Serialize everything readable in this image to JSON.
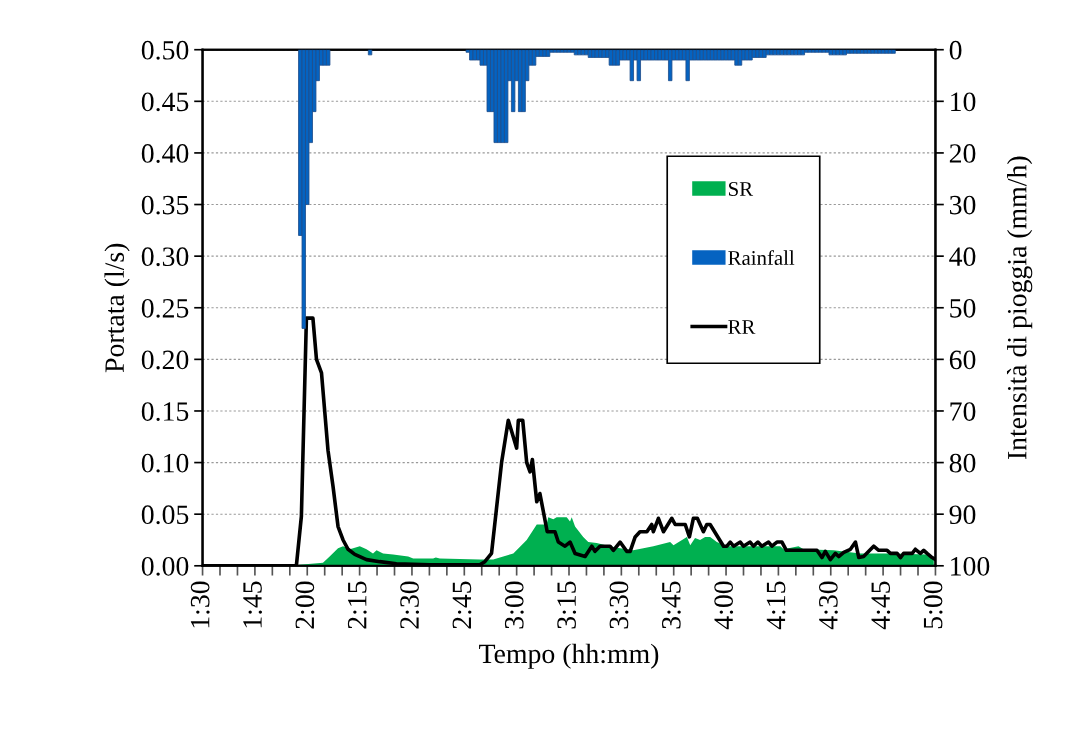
{
  "chart_data": {
    "type": "area",
    "xlabel": "Tempo (hh:mm)",
    "ylabel": "Portata (l/s)",
    "y2label": "Intensità di pioggia (mm/h)",
    "xlim": [
      1.5,
      5.0
    ],
    "xticks": [
      {
        "value": 1.5,
        "label": "1:30"
      },
      {
        "value": 1.5833,
        "label": null
      },
      {
        "value": 1.6667,
        "label": null
      },
      {
        "value": 1.75,
        "label": "1:45"
      },
      {
        "value": 1.8333,
        "label": null
      },
      {
        "value": 1.9167,
        "label": null
      },
      {
        "value": 2.0,
        "label": "2:00"
      },
      {
        "value": 2.0833,
        "label": null
      },
      {
        "value": 2.1667,
        "label": null
      },
      {
        "value": 2.25,
        "label": "2:15"
      },
      {
        "value": 2.3333,
        "label": null
      },
      {
        "value": 2.4167,
        "label": null
      },
      {
        "value": 2.5,
        "label": "2:30"
      },
      {
        "value": 2.5833,
        "label": null
      },
      {
        "value": 2.6667,
        "label": null
      },
      {
        "value": 2.75,
        "label": "2:45"
      },
      {
        "value": 2.8333,
        "label": null
      },
      {
        "value": 2.9167,
        "label": null
      },
      {
        "value": 3.0,
        "label": "3:00"
      },
      {
        "value": 3.0833,
        "label": null
      },
      {
        "value": 3.1667,
        "label": null
      },
      {
        "value": 3.25,
        "label": "3:15"
      },
      {
        "value": 3.3333,
        "label": null
      },
      {
        "value": 3.4167,
        "label": null
      },
      {
        "value": 3.5,
        "label": "3:30"
      },
      {
        "value": 3.5833,
        "label": null
      },
      {
        "value": 3.6667,
        "label": null
      },
      {
        "value": 3.75,
        "label": "3:45"
      },
      {
        "value": 3.8333,
        "label": null
      },
      {
        "value": 3.9167,
        "label": null
      },
      {
        "value": 4.0,
        "label": "4:00"
      },
      {
        "value": 4.0833,
        "label": null
      },
      {
        "value": 4.1667,
        "label": null
      },
      {
        "value": 4.25,
        "label": "4:15"
      },
      {
        "value": 4.3333,
        "label": null
      },
      {
        "value": 4.4167,
        "label": null
      },
      {
        "value": 4.5,
        "label": "4:30"
      },
      {
        "value": 4.5833,
        "label": null
      },
      {
        "value": 4.6667,
        "label": null
      },
      {
        "value": 4.75,
        "label": "4:45"
      },
      {
        "value": 4.8333,
        "label": null
      },
      {
        "value": 4.9167,
        "label": null
      },
      {
        "value": 5.0,
        "label": "5:00"
      }
    ],
    "ylim": [
      0,
      0.5
    ],
    "yticks": [
      {
        "value": 0,
        "label": "0.00"
      },
      {
        "value": 0.05,
        "label": "0.05"
      },
      {
        "value": 0.1,
        "label": "0.10"
      },
      {
        "value": 0.15,
        "label": "0.15"
      },
      {
        "value": 0.2,
        "label": "0.20"
      },
      {
        "value": 0.25,
        "label": "0.25"
      },
      {
        "value": 0.3,
        "label": "0.30"
      },
      {
        "value": 0.35,
        "label": "0.35"
      },
      {
        "value": 0.4,
        "label": "0.40"
      },
      {
        "value": 0.45,
        "label": "0.45"
      },
      {
        "value": 0.5,
        "label": "0.50"
      }
    ],
    "y2lim": [
      100,
      0
    ],
    "y2ticks": [
      0,
      10,
      20,
      30,
      40,
      50,
      60,
      70,
      80,
      90,
      100
    ],
    "grid": "y",
    "legend": "right",
    "series": [
      {
        "name": "SR",
        "color": "#00b050",
        "x": [
          1.5,
          1.948,
          1.964,
          2.075,
          2.107,
          2.147,
          2.171,
          2.203,
          2.251,
          2.283,
          2.314,
          2.331,
          2.362,
          2.41,
          2.482,
          2.506,
          2.601,
          2.614,
          2.633,
          2.824,
          2.888,
          2.984,
          3.048,
          3.096,
          3.143,
          3.151,
          3.175,
          3.191,
          3.239,
          3.255,
          3.263,
          3.279,
          3.318,
          3.342,
          3.382,
          3.446,
          3.494,
          3.557,
          3.653,
          3.733,
          3.749,
          3.813,
          3.829,
          3.852,
          3.876,
          3.9,
          3.924,
          3.956,
          4.004,
          4.259,
          4.275,
          4.346,
          4.37,
          4.514,
          4.641,
          4.801,
          4.96,
          4.992
        ],
        "values": [
          0,
          0,
          0.001,
          0.003,
          0.009,
          0.017,
          0.019,
          0.016,
          0.019,
          0.016,
          0.012,
          0.015,
          0.012,
          0.011,
          0.009,
          0.007,
          0.007,
          0.008,
          0.007,
          0.006,
          0.006,
          0.012,
          0.025,
          0.04,
          0.04,
          0.047,
          0.045,
          0.047,
          0.047,
          0.043,
          0.047,
          0.038,
          0.028,
          0.023,
          0.022,
          0.019,
          0.017,
          0.015,
          0.019,
          0.023,
          0.02,
          0.028,
          0.02,
          0.027,
          0.025,
          0.028,
          0.028,
          0.023,
          0.019,
          0.019,
          0.016,
          0.019,
          0.016,
          0.015,
          0.012,
          0.012,
          0.011,
          0.006
        ]
      },
      {
        "name": "Rainfall",
        "type": "bar",
        "axis": "y2",
        "color": "#0563c1",
        "x": [
          1.9667,
          1.9833,
          2.0,
          2.0167,
          2.0333,
          2.05,
          2.0667,
          2.0833,
          2.1,
          2.3,
          2.7667,
          2.7833,
          2.8,
          2.8167,
          2.8333,
          2.85,
          2.8667,
          2.8833,
          2.9,
          2.9167,
          2.9333,
          2.95,
          2.9667,
          2.9833,
          3.0,
          3.0167,
          3.0333,
          3.05,
          3.0667,
          3.0833,
          3.1,
          3.1167,
          3.1333,
          3.15,
          3.1667,
          3.1833,
          3.2,
          3.2167,
          3.2333,
          3.25,
          3.2667,
          3.2833,
          3.3,
          3.3167,
          3.3333,
          3.35,
          3.3667,
          3.3833,
          3.4,
          3.4167,
          3.4333,
          3.45,
          3.4667,
          3.4833,
          3.5,
          3.5167,
          3.5333,
          3.55,
          3.5667,
          3.5833,
          3.6,
          3.6167,
          3.6333,
          3.65,
          3.6667,
          3.6833,
          3.7,
          3.7167,
          3.7333,
          3.75,
          3.7667,
          3.7833,
          3.8,
          3.8167,
          3.8333,
          3.85,
          3.8667,
          3.8833,
          3.9,
          3.9167,
          3.9333,
          3.95,
          3.9667,
          3.9833,
          4.0,
          4.0167,
          4.0333,
          4.05,
          4.0667,
          4.0833,
          4.1,
          4.1167,
          4.1333,
          4.15,
          4.1667,
          4.1833,
          4.2,
          4.2167,
          4.2333,
          4.25,
          4.2667,
          4.2833,
          4.3,
          4.3167,
          4.3333,
          4.35,
          4.3667,
          4.3833,
          4.4,
          4.4167,
          4.4333,
          4.45,
          4.4667,
          4.4833,
          4.5,
          4.5167,
          4.5333,
          4.55,
          4.5667,
          4.5833,
          4.6,
          4.6167,
          4.6333,
          4.65,
          4.6667,
          4.6833,
          4.7,
          4.7167,
          4.7333,
          4.75,
          4.7667,
          4.7833,
          4.8
        ],
        "values": [
          36,
          54,
          30,
          18,
          12,
          6,
          3,
          3,
          3,
          1,
          0.5,
          2,
          2,
          2,
          3,
          3,
          12,
          12,
          18,
          18,
          18,
          18,
          6,
          12,
          6,
          12,
          12,
          6,
          3,
          3,
          1.3,
          1.3,
          1.3,
          1.3,
          0.5,
          0.5,
          0.5,
          0.5,
          0.5,
          0.5,
          0.5,
          1,
          1,
          1,
          1,
          1.5,
          1.5,
          1.5,
          1.5,
          1.5,
          1.5,
          3,
          3,
          3,
          2,
          2,
          2,
          6,
          2,
          6,
          2,
          2,
          2,
          2,
          2,
          2,
          2,
          2,
          6,
          2,
          2,
          2,
          2,
          6,
          2,
          2,
          2,
          2,
          2,
          2,
          2,
          2,
          2,
          2,
          2,
          2,
          2,
          3,
          3,
          2,
          2,
          2,
          1.5,
          1.5,
          1.5,
          1.5,
          1,
          1,
          1,
          1,
          1,
          1,
          1,
          1,
          1,
          1,
          1,
          0.5,
          0.5,
          0.5,
          0.5,
          0.5,
          0.5,
          0.5,
          1,
          1,
          1,
          1,
          1,
          0.7,
          0.7,
          0.7,
          0.7,
          0.7,
          0.7,
          0.7,
          0.7,
          0.7,
          0.7,
          0.7,
          0.7,
          0.7,
          0.7
        ]
      },
      {
        "name": "RR",
        "type": "line",
        "color": "#000000",
        "x": [
          1.5,
          1.948,
          1.972,
          1.996,
          2.027,
          2.044,
          2.068,
          2.099,
          2.123,
          2.147,
          2.171,
          2.195,
          2.227,
          2.283,
          2.346,
          2.426,
          2.585,
          2.824,
          2.848,
          2.88,
          2.928,
          2.96,
          3.0,
          3.008,
          3.029,
          3.048,
          3.064,
          3.075,
          3.096,
          3.111,
          3.146,
          3.183,
          3.199,
          3.231,
          3.255,
          3.279,
          3.327,
          3.359,
          3.374,
          3.398,
          3.446,
          3.462,
          3.494,
          3.526,
          3.542,
          3.566,
          3.589,
          3.622,
          3.645,
          3.653,
          3.677,
          3.701,
          3.741,
          3.757,
          3.805,
          3.825,
          3.844,
          3.863,
          3.892,
          3.908,
          3.924,
          3.988,
          4.004,
          4.02,
          4.036,
          4.068,
          4.083,
          4.115,
          4.131,
          4.152,
          4.171,
          4.203,
          4.219,
          4.243,
          4.267,
          4.288,
          4.434,
          4.458,
          4.474,
          4.498,
          4.522,
          4.538,
          4.562,
          4.594,
          4.618,
          4.634,
          4.657,
          4.705,
          4.729,
          4.769,
          4.785,
          4.817,
          4.833,
          4.848,
          4.889,
          4.904,
          4.928,
          4.944,
          4.96,
          4.984,
          5.0
        ],
        "values": [
          0,
          0,
          0.048,
          0.24,
          0.24,
          0.2,
          0.187,
          0.112,
          0.077,
          0.038,
          0.025,
          0.016,
          0.011,
          0.006,
          0.004,
          0.002,
          0.001,
          0.001,
          0.004,
          0.012,
          0.1,
          0.141,
          0.114,
          0.141,
          0.141,
          0.1,
          0.091,
          0.103,
          0.062,
          0.07,
          0.033,
          0.033,
          0.023,
          0.019,
          0.023,
          0.012,
          0.009,
          0.019,
          0.014,
          0.019,
          0.019,
          0.015,
          0.023,
          0.014,
          0.014,
          0.028,
          0.033,
          0.033,
          0.04,
          0.033,
          0.046,
          0.033,
          0.046,
          0.04,
          0.04,
          0.028,
          0.046,
          0.046,
          0.033,
          0.04,
          0.04,
          0.019,
          0.019,
          0.023,
          0.019,
          0.023,
          0.019,
          0.023,
          0.019,
          0.023,
          0.019,
          0.023,
          0.019,
          0.023,
          0.023,
          0.015,
          0.015,
          0.008,
          0.014,
          0.006,
          0.012,
          0.009,
          0.013,
          0.016,
          0.023,
          0.008,
          0.009,
          0.019,
          0.015,
          0.015,
          0.012,
          0.012,
          0.008,
          0.012,
          0.012,
          0.016,
          0.012,
          0.015,
          0.012,
          0.008,
          0.006
        ]
      }
    ]
  }
}
